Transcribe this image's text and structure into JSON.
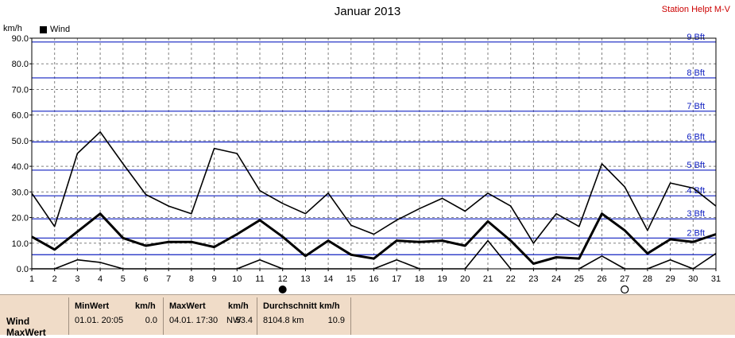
{
  "header": {
    "title": "Januar 2013",
    "station": "Station Helpt M-V",
    "unit": "km/h",
    "legend": "Wind"
  },
  "chart_data": {
    "type": "line",
    "title": "Januar 2013",
    "ylabel": "km/h",
    "xlabel": "",
    "x": [
      1,
      2,
      3,
      4,
      5,
      6,
      7,
      8,
      9,
      10,
      11,
      12,
      13,
      14,
      15,
      16,
      17,
      18,
      19,
      20,
      21,
      22,
      23,
      24,
      25,
      26,
      27,
      28,
      29,
      30,
      31
    ],
    "xlim": [
      1,
      31
    ],
    "ylim": [
      0,
      90
    ],
    "y_ticks": [
      "0.0",
      "10.0",
      "20.0",
      "30.0",
      "40.0",
      "50.0",
      "60.0",
      "70.0",
      "80.0",
      "90.0"
    ],
    "x_ticks": [
      "1",
      "2",
      "3",
      "4",
      "5",
      "6",
      "7",
      "8",
      "9",
      "10",
      "11",
      "12",
      "13",
      "14",
      "15",
      "16",
      "17",
      "18",
      "19",
      "20",
      "21",
      "22",
      "23",
      "24",
      "25",
      "26",
      "27",
      "28",
      "29",
      "30",
      "31"
    ],
    "grid": true,
    "legend_position": "top-left",
    "series": [
      {
        "name": "Wind",
        "role": "max",
        "stroke": 1.6,
        "values": [
          29.5,
          16.5,
          45,
          53.4,
          41,
          29,
          24.5,
          21.5,
          47,
          45,
          30.5,
          25.5,
          21.5,
          29.5,
          17,
          13.5,
          19,
          23.5,
          27.5,
          22.5,
          29.5,
          24.5,
          10,
          21.5,
          16.5,
          41,
          32,
          15,
          33.5,
          31.5,
          24.5
        ]
      },
      {
        "name": "Wind",
        "role": "avg",
        "stroke": 3,
        "values": [
          12.5,
          7.5,
          14.5,
          21.5,
          12,
          9,
          10.5,
          10.5,
          8.5,
          13.5,
          19,
          12.5,
          5,
          11,
          5.5,
          4,
          11,
          10.5,
          11,
          9,
          18.5,
          11,
          2,
          4.5,
          4,
          21.5,
          15,
          6,
          11.5,
          10.5,
          13.5
        ]
      },
      {
        "name": "Wind",
        "role": "min",
        "stroke": 1.6,
        "values": [
          0,
          0,
          3.5,
          2.5,
          0,
          0,
          0,
          0,
          0,
          0,
          3.5,
          0,
          0,
          0,
          0,
          0,
          3.5,
          0,
          0,
          0,
          11,
          0,
          0,
          0,
          0,
          5,
          0,
          0,
          3.5,
          0,
          6
        ]
      }
    ],
    "beaufort_lines": [
      {
        "kmh": 5.5,
        "label": ""
      },
      {
        "kmh": 12,
        "label": "2 Bft"
      },
      {
        "kmh": 19.5,
        "label": "3 Bft"
      },
      {
        "kmh": 28.5,
        "label": "4 Bft"
      },
      {
        "kmh": 38.5,
        "label": "5 Bft"
      },
      {
        "kmh": 49.5,
        "label": "6 Bft"
      },
      {
        "kmh": 61.5,
        "label": "7 Bft"
      },
      {
        "kmh": 74.5,
        "label": "8 Bft"
      },
      {
        "kmh": 88.5,
        "label": "9 Bft"
      }
    ],
    "beaufort_color": "#1020c0",
    "markers": [
      {
        "x": 12,
        "shape": "filled-circle"
      },
      {
        "x": 27,
        "shape": "open-circle"
      }
    ]
  },
  "footer": {
    "row1_label": "Wind",
    "row2_label": "MaxWert",
    "min": {
      "heading": "MinWert",
      "unit": "km/h",
      "datetime": "01.01.  20:05",
      "value": "0.0"
    },
    "max": {
      "heading": "MaxWert",
      "unit": "km/h",
      "datetime": "04.01.  17:30",
      "dir": "NW",
      "value": "53.4"
    },
    "avg": {
      "heading": "Durchschnitt km/h",
      "distance": "8104.8 km",
      "value": "10.9"
    }
  }
}
